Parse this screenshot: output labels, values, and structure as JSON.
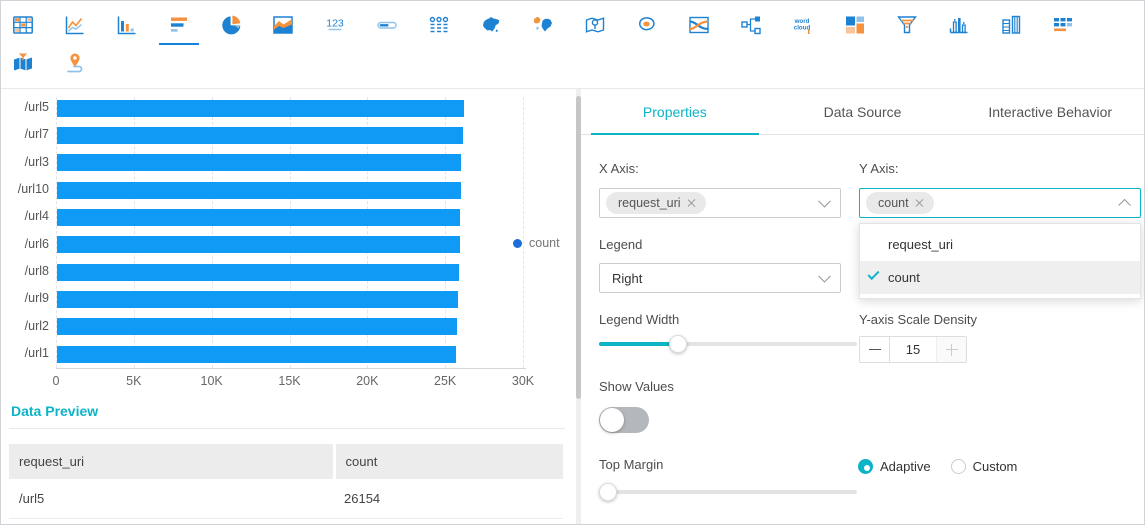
{
  "colors": {
    "accent_teal": "#0db3c7",
    "bar_blue": "#0f9af5",
    "legend_dot_blue": "#1a6fd8",
    "selected_tab_blue": "#1583e0",
    "icon_blue": "#1e82d2",
    "icon_orange": "#f5923d",
    "icon_light_blue": "#8fc3ea",
    "icon_light_orange": "#f8c49c"
  },
  "toolbar": {
    "icons": [
      {
        "name": "table-icon",
        "row": 1,
        "selected": false
      },
      {
        "name": "line-chart-icon",
        "row": 1,
        "selected": false
      },
      {
        "name": "column-chart-icon",
        "row": 1,
        "selected": false
      },
      {
        "name": "bar-chart-icon",
        "row": 1,
        "selected": true
      },
      {
        "name": "pie-chart-icon",
        "row": 1,
        "selected": false
      },
      {
        "name": "area-chart-icon",
        "row": 1,
        "selected": false
      },
      {
        "name": "single-value-icon",
        "row": 1,
        "selected": false
      },
      {
        "name": "progress-bar-icon",
        "row": 1,
        "selected": false
      },
      {
        "name": "flow-chart-icon",
        "row": 1,
        "selected": false
      },
      {
        "name": "china-map-icon",
        "row": 1,
        "selected": false
      },
      {
        "name": "world-map-icon",
        "row": 1,
        "selected": false
      },
      {
        "name": "location-map-icon",
        "row": 1,
        "selected": false
      },
      {
        "name": "heat-map-icon",
        "row": 1,
        "selected": false
      },
      {
        "name": "river-chart-icon",
        "row": 1,
        "selected": false
      },
      {
        "name": "sankey-icon",
        "row": 1,
        "selected": false
      },
      {
        "name": "word-cloud-icon",
        "row": 1,
        "selected": false
      },
      {
        "name": "treemap-icon",
        "row": 1,
        "selected": false
      },
      {
        "name": "funnel-icon",
        "row": 1,
        "selected": false
      },
      {
        "name": "distribution-icon",
        "row": 1,
        "selected": false
      },
      {
        "name": "compare-chart-icon",
        "row": 1,
        "selected": false
      },
      {
        "name": "matrix-icon",
        "row": 1,
        "selected": false
      },
      {
        "name": "map-funnel-icon",
        "row": 2,
        "selected": false
      },
      {
        "name": "trajectory-icon",
        "row": 2,
        "selected": false
      }
    ]
  },
  "chart_data": {
    "type": "bar",
    "orientation": "horizontal",
    "categories": [
      "/url5",
      "/url7",
      "/url3",
      "/url10",
      "/url4",
      "/url6",
      "/url8",
      "/url9",
      "/url2",
      "/url1"
    ],
    "values": [
      26154,
      26090,
      25980,
      25940,
      25900,
      25860,
      25820,
      25780,
      25700,
      25620
    ],
    "series_name": "count",
    "title": "",
    "xlabel": "",
    "ylabel": "",
    "xlim": [
      0,
      30000
    ],
    "xticks": [
      0,
      5000,
      10000,
      15000,
      20000,
      25000,
      30000
    ],
    "xtick_labels": [
      "0",
      "5K",
      "10K",
      "15K",
      "20K",
      "25K",
      "30K"
    ],
    "grid": "dashed-vertical",
    "legend": [
      "count"
    ],
    "legend_position": "right"
  },
  "preview": {
    "title": "Data Preview",
    "columns": [
      "request_uri",
      "count"
    ],
    "rows": [
      [
        "/url5",
        "26154"
      ]
    ]
  },
  "panel": {
    "tabs": [
      {
        "label": "Properties",
        "active": true
      },
      {
        "label": "Data Source",
        "active": false
      },
      {
        "label": "Interactive Behavior",
        "active": false
      }
    ],
    "x_axis": {
      "label": "X Axis:",
      "tag": "request_uri"
    },
    "y_axis": {
      "label": "Y Axis:",
      "tag": "count"
    },
    "dropdown": {
      "options": [
        {
          "label": "request_uri",
          "selected": false
        },
        {
          "label": "count",
          "selected": true
        }
      ]
    },
    "legend_select": {
      "label": "Legend",
      "value": "Right"
    },
    "legend_width": {
      "label": "Legend Width",
      "percent": 29
    },
    "scale_density": {
      "label": "Y-axis Scale Density",
      "value": "15"
    },
    "show_values": {
      "label": "Show Values",
      "on": false
    },
    "top_margin": {
      "label": "Top Margin",
      "percent": 0
    },
    "margin_mode": {
      "options": [
        {
          "label": "Adaptive",
          "selected": true
        },
        {
          "label": "Custom",
          "selected": false
        }
      ]
    }
  }
}
